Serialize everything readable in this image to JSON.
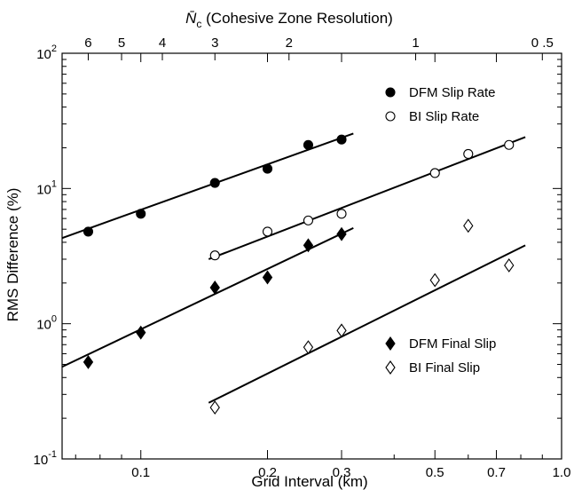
{
  "chart_data": {
    "type": "scatter",
    "xscale": "log",
    "yscale": "log",
    "xlim": [
      0.065,
      1.0
    ],
    "ylim": [
      0.1,
      100
    ],
    "xlabel": "Grid Interval (km)",
    "ylabel": "RMS Difference (%)",
    "top_axis_label_symbol": "N̄",
    "top_axis_label_subscript": "c",
    "top_axis_label_text": " (Cohesive Zone Resolution)",
    "x_ticks": [
      {
        "value": 0.1,
        "label": "0.1"
      },
      {
        "value": 0.2,
        "label": "0.2"
      },
      {
        "value": 0.3,
        "label": "0.3"
      },
      {
        "value": 0.5,
        "label": "0.5"
      },
      {
        "value": 0.7,
        "label": "0.7"
      },
      {
        "value": 1.0,
        "label": "1.0"
      }
    ],
    "x_minor_ticks": [
      0.07,
      0.08,
      0.09,
      0.4,
      0.6,
      0.8,
      0.9
    ],
    "y_ticks": [
      {
        "value": 0.1,
        "base": "10",
        "exp": "-1"
      },
      {
        "value": 1,
        "base": "10",
        "exp": "0"
      },
      {
        "value": 10,
        "base": "10",
        "exp": "1"
      },
      {
        "value": 100,
        "base": "10",
        "exp": "2"
      }
    ],
    "y_minor_ticks": [
      0.2,
      0.3,
      0.4,
      0.5,
      0.6,
      0.7,
      0.8,
      0.9,
      2,
      3,
      4,
      5,
      6,
      7,
      8,
      9,
      20,
      30,
      40,
      50,
      60,
      70,
      80,
      90
    ],
    "top_ticks": [
      {
        "value": 6,
        "label": "6",
        "x": 0.075
      },
      {
        "value": 5,
        "label": "5",
        "x": 0.09
      },
      {
        "value": 4,
        "label": "4",
        "x": 0.1125
      },
      {
        "value": 3,
        "label": "3",
        "x": 0.15
      },
      {
        "value": 2,
        "label": "2",
        "x": 0.225
      },
      {
        "value": 1,
        "label": "1",
        "x": 0.45
      },
      {
        "value": 0.5,
        "label": "0 .5",
        "x": 0.9
      }
    ],
    "series": [
      {
        "name": "DFM Slip Rate",
        "marker": "circle",
        "filled": true,
        "x": [
          0.075,
          0.1,
          0.15,
          0.2,
          0.25,
          0.3
        ],
        "y": [
          4.8,
          6.5,
          11,
          14,
          21,
          23
        ],
        "fit": {
          "x": [
            0.065,
            0.32
          ],
          "y": [
            4.3,
            25.5
          ]
        }
      },
      {
        "name": "BI Slip Rate",
        "marker": "circle",
        "filled": false,
        "x": [
          0.15,
          0.2,
          0.25,
          0.3,
          0.5,
          0.6,
          0.75
        ],
        "y": [
          3.2,
          4.8,
          5.8,
          6.5,
          13,
          18,
          21
        ],
        "fit": {
          "x": [
            0.145,
            0.82
          ],
          "y": [
            3.0,
            24
          ]
        }
      },
      {
        "name": "DFM Final Slip",
        "marker": "diamond",
        "filled": true,
        "x": [
          0.075,
          0.1,
          0.15,
          0.2,
          0.25,
          0.3
        ],
        "y": [
          0.52,
          0.86,
          1.85,
          2.2,
          3.8,
          4.6
        ],
        "fit": {
          "x": [
            0.065,
            0.32
          ],
          "y": [
            0.48,
            5.1
          ]
        }
      },
      {
        "name": "BI Final Slip",
        "marker": "diamond",
        "filled": false,
        "x": [
          0.15,
          0.25,
          0.3,
          0.5,
          0.6,
          0.75
        ],
        "y": [
          0.24,
          0.67,
          0.89,
          2.1,
          5.3,
          2.7
        ],
        "fit": {
          "x": [
            0.145,
            0.82
          ],
          "y": [
            0.26,
            3.8
          ]
        }
      }
    ],
    "legend": [
      {
        "position": "top-right",
        "entries": [
          "DFM Slip Rate",
          "BI Slip Rate"
        ]
      },
      {
        "position": "bottom-right",
        "entries": [
          "DFM Final Slip",
          "BI Final Slip"
        ]
      }
    ],
    "grid": false
  }
}
